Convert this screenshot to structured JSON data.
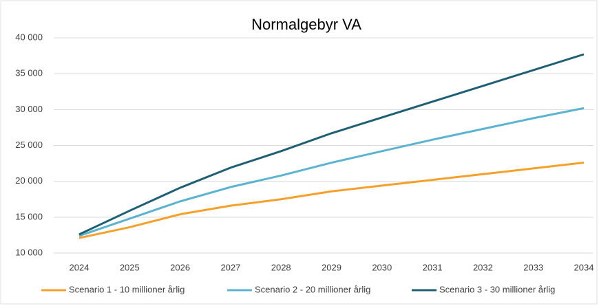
{
  "chart_data": {
    "type": "line",
    "title": "Normalgebyr VA",
    "categories": [
      "2024",
      "2025",
      "2026",
      "2027",
      "2028",
      "2029",
      "2030",
      "2031",
      "2032",
      "2033",
      "2034"
    ],
    "series": [
      {
        "name": "Scenario 1 - 10 millioner årlig",
        "color": "#f5a02a",
        "values": [
          12100,
          13600,
          15400,
          16600,
          17500,
          18600,
          19400,
          20200,
          21000,
          21800,
          22600
        ]
      },
      {
        "name": "Scenario 2 - 20 millioner årlig",
        "color": "#5bb3d0",
        "values": [
          12400,
          14800,
          17200,
          19200,
          20800,
          22600,
          24200,
          25800,
          27300,
          28800,
          30200
        ]
      },
      {
        "name": "Scenario 3 - 30 millioner årlig",
        "color": "#1f5f73",
        "values": [
          12600,
          15900,
          19100,
          21900,
          24200,
          26700,
          28900,
          31100,
          33300,
          35500,
          37700
        ]
      }
    ],
    "ylim": [
      10000,
      40000
    ],
    "yticks": [
      {
        "value": 10000,
        "label": "10 000"
      },
      {
        "value": 15000,
        "label": "15 000"
      },
      {
        "value": 20000,
        "label": "20 000"
      },
      {
        "value": 25000,
        "label": "25 000"
      },
      {
        "value": 30000,
        "label": "30 000"
      },
      {
        "value": 35000,
        "label": "35 000"
      },
      {
        "value": 40000,
        "label": "40 000"
      }
    ],
    "grid": true,
    "legend": "bottom"
  }
}
